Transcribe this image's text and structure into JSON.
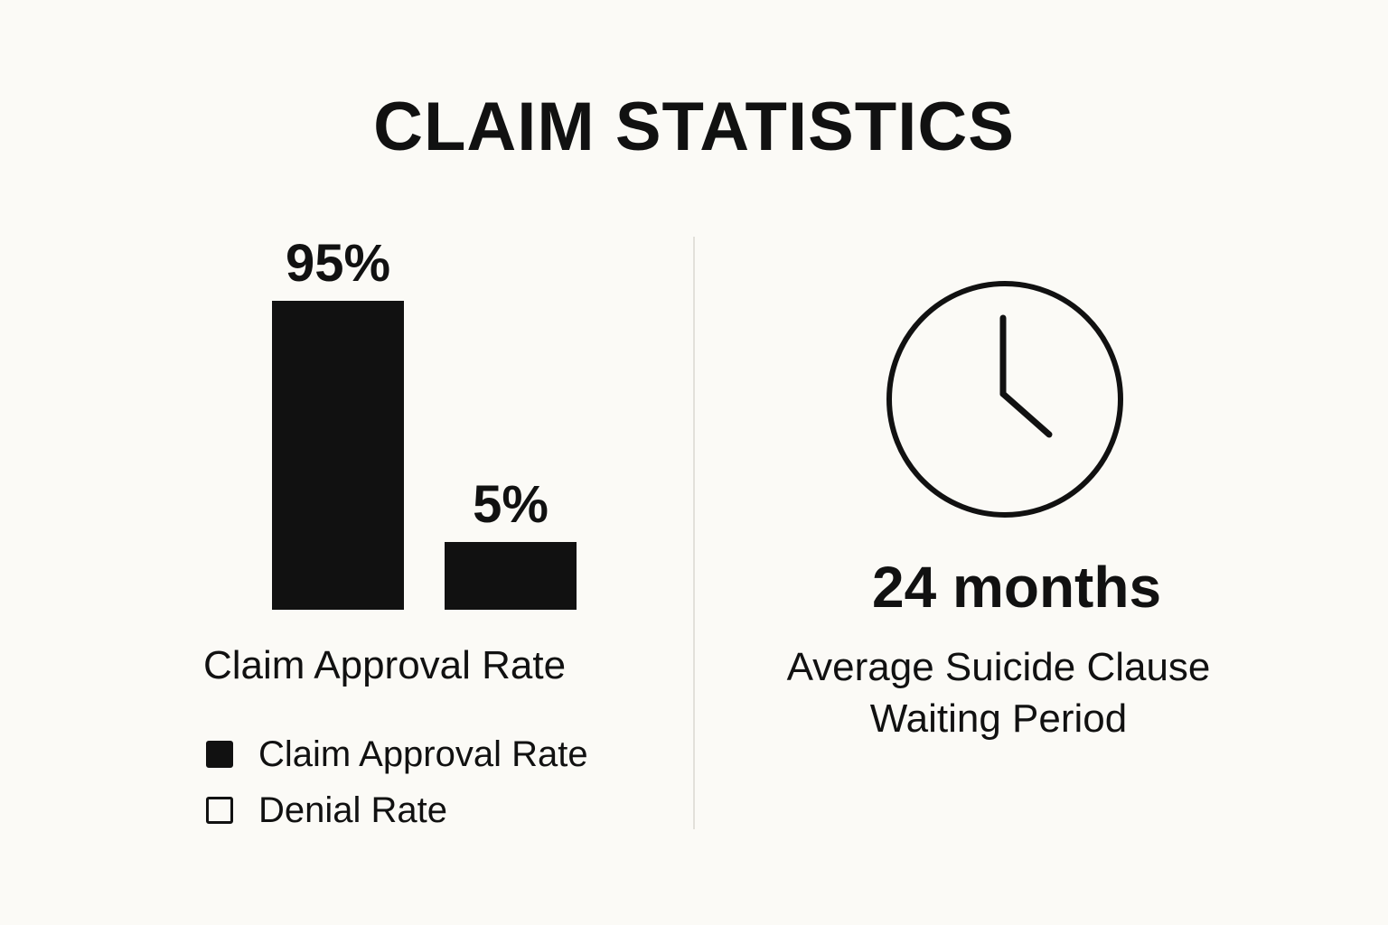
{
  "title": "CLAIM STATISTICS",
  "chart_data": {
    "type": "bar",
    "categories": [
      "Claim Approval Rate",
      "Denial Rate"
    ],
    "values": [
      95,
      5
    ],
    "data_labels": [
      "95%",
      "5%"
    ],
    "xlabel": "Claim Approval Rate",
    "ylabel": "",
    "ylim": [
      0,
      100
    ],
    "grid": false,
    "legend": {
      "placement": "bottom-left",
      "entries": [
        {
          "label": "Claim Approval Rate",
          "style": "filled"
        },
        {
          "label": "Denial Rate",
          "style": "outline"
        }
      ]
    }
  },
  "stat": {
    "value": "24 months",
    "caption_line1": "Average Suicide Clause",
    "caption_line2": "Waiting Period",
    "icon": "clock-icon"
  },
  "colors": {
    "background": "#fbfaf6",
    "ink": "#111111",
    "divider": "#e2e0da"
  }
}
